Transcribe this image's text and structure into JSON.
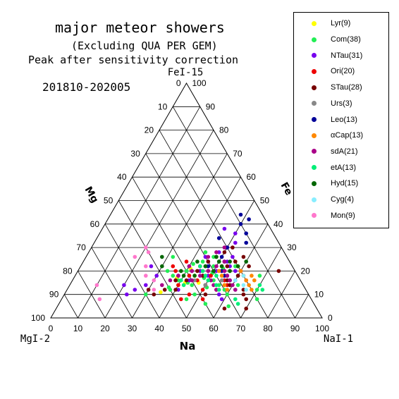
{
  "title_lines": [
    "major meteor showers",
    "(Excluding QUA PER GEM)",
    "Peak after sensitivity correction"
  ],
  "period": "201810-202005",
  "chart_data": {
    "type": "ternary-scatter",
    "axes": {
      "top_vertex": "FeI-15",
      "left_vertex": "MgI-2",
      "right_vertex": "NaI-1",
      "left_side_label": "Mg",
      "right_side_label": "Fe",
      "bottom_label": "Na"
    },
    "ticks": {
      "na_bottom": [
        "0",
        "10",
        "20",
        "30",
        "40",
        "50",
        "60",
        "70",
        "80",
        "90",
        "100"
      ],
      "mg_left": [
        "100",
        "90",
        "80",
        "70",
        "60",
        "50",
        "40",
        "30",
        "20",
        "10",
        "0"
      ],
      "fe_right": [
        "100",
        "90",
        "80",
        "70",
        "60",
        "50",
        "40",
        "30",
        "20",
        "10",
        "0"
      ]
    },
    "legend": [
      {
        "label": "Lyr(9)",
        "color": "#ffff00"
      },
      {
        "label": "Com(38)",
        "color": "#22ee55"
      },
      {
        "label": "NTau(31)",
        "color": "#7700ee"
      },
      {
        "label": "Ori(20)",
        "color": "#ee0000"
      },
      {
        "label": "STau(28)",
        "color": "#770000"
      },
      {
        "label": "Urs(3)",
        "color": "#888888"
      },
      {
        "label": "Leo(13)",
        "color": "#000099"
      },
      {
        "label": "αCap(13)",
        "color": "#ff8800"
      },
      {
        "label": "sdA(21)",
        "color": "#aa0088"
      },
      {
        "label": "etA(13)",
        "color": "#00ee77"
      },
      {
        "label": "Hyd(15)",
        "color": "#006600"
      },
      {
        "label": "Cyg(4)",
        "color": "#88eeff"
      },
      {
        "label": "Mon(9)",
        "color": "#ff77cc"
      }
    ],
    "points_note": "Points given as [Na%, Fe%] (Mg = 100 - Na - Fe)",
    "series": [
      {
        "name": "Lyr(9)",
        "color": "#ffff00",
        "points": [
          [
            44,
            18
          ],
          [
            46,
            16
          ],
          [
            47,
            15
          ],
          [
            40,
            14
          ],
          [
            38,
            17
          ],
          [
            41,
            21
          ],
          [
            45,
            20
          ],
          [
            42,
            15
          ],
          [
            35,
            11
          ]
        ]
      },
      {
        "name": "Com(38)",
        "color": "#22ee55",
        "points": [
          [
            42,
            18
          ],
          [
            45,
            20
          ],
          [
            48,
            17
          ],
          [
            50,
            19
          ],
          [
            43,
            15
          ],
          [
            38,
            12
          ],
          [
            40,
            20
          ],
          [
            46,
            22
          ],
          [
            52,
            16
          ],
          [
            55,
            14
          ],
          [
            58,
            12
          ],
          [
            60,
            10
          ],
          [
            36,
            18
          ],
          [
            44,
            24
          ],
          [
            47,
            26
          ],
          [
            49,
            22
          ],
          [
            51,
            13
          ],
          [
            53,
            21
          ],
          [
            41,
            23
          ],
          [
            39,
            16
          ],
          [
            37,
            13
          ],
          [
            56,
            18
          ],
          [
            57,
            22
          ],
          [
            45,
            14
          ],
          [
            43,
            28
          ],
          [
            48,
            10
          ],
          [
            50,
            24
          ],
          [
            60,
            18
          ],
          [
            62,
            14
          ],
          [
            32,
            26
          ],
          [
            30,
            10
          ],
          [
            33,
            20
          ],
          [
            46,
            8
          ],
          [
            54,
            6
          ],
          [
            63,
            5
          ],
          [
            70,
            12
          ],
          [
            68,
            18
          ],
          [
            72,
            8
          ]
        ]
      },
      {
        "name": "NTau(31)",
        "color": "#7700ee",
        "points": [
          [
            45,
            20
          ],
          [
            47,
            22
          ],
          [
            49,
            18
          ],
          [
            51,
            20
          ],
          [
            53,
            24
          ],
          [
            55,
            22
          ],
          [
            44,
            26
          ],
          [
            48,
            28
          ],
          [
            50,
            30
          ],
          [
            52,
            32
          ],
          [
            46,
            24
          ],
          [
            42,
            20
          ],
          [
            40,
            22
          ],
          [
            38,
            18
          ],
          [
            56,
            18
          ],
          [
            58,
            20
          ],
          [
            60,
            16
          ],
          [
            62,
            12
          ],
          [
            30,
            18
          ],
          [
            28,
            14
          ],
          [
            26,
            22
          ],
          [
            45,
            38
          ],
          [
            50,
            36
          ],
          [
            54,
            26
          ],
          [
            43,
            16
          ],
          [
            41,
            12
          ],
          [
            57,
            10
          ],
          [
            59,
            8
          ],
          [
            25,
            12
          ],
          [
            23,
            10
          ],
          [
            20,
            14
          ]
        ]
      },
      {
        "name": "Ori(20)",
        "color": "#ee0000",
        "points": [
          [
            48,
            20
          ],
          [
            50,
            18
          ],
          [
            52,
            22
          ],
          [
            46,
            16
          ],
          [
            44,
            22
          ],
          [
            54,
            20
          ],
          [
            56,
            16
          ],
          [
            58,
            14
          ],
          [
            42,
            18
          ],
          [
            40,
            14
          ],
          [
            60,
            20
          ],
          [
            62,
            18
          ],
          [
            38,
            24
          ],
          [
            36,
            20
          ],
          [
            50,
            12
          ],
          [
            52,
            8
          ],
          [
            46,
            10
          ],
          [
            44,
            8
          ],
          [
            64,
            16
          ],
          [
            34,
            22
          ]
        ]
      },
      {
        "name": "STau(28)",
        "color": "#770000",
        "points": [
          [
            48,
            26
          ],
          [
            50,
            28
          ],
          [
            52,
            30
          ],
          [
            46,
            24
          ],
          [
            44,
            20
          ],
          [
            54,
            22
          ],
          [
            56,
            24
          ],
          [
            58,
            26
          ],
          [
            42,
            16
          ],
          [
            40,
            12
          ],
          [
            60,
            18
          ],
          [
            62,
            22
          ],
          [
            38,
            16
          ],
          [
            36,
            12
          ],
          [
            50,
            14
          ],
          [
            52,
            10
          ],
          [
            47,
            18
          ],
          [
            55,
            12
          ],
          [
            57,
            16
          ],
          [
            59,
            14
          ],
          [
            65,
            12
          ],
          [
            66,
            10
          ],
          [
            68,
            8
          ],
          [
            70,
            4
          ],
          [
            62,
            4
          ],
          [
            33,
            10
          ],
          [
            30,
            12
          ],
          [
            74,
            20
          ]
        ]
      },
      {
        "name": "Urs(3)",
        "color": "#888888",
        "points": [
          [
            45,
            16
          ],
          [
            50,
            14
          ],
          [
            55,
            16
          ]
        ]
      },
      {
        "name": "Leo(13)",
        "color": "#000099",
        "points": [
          [
            50,
            40
          ],
          [
            52,
            42
          ],
          [
            48,
            44
          ],
          [
            54,
            36
          ],
          [
            45,
            34
          ],
          [
            56,
            32
          ],
          [
            50,
            30
          ],
          [
            47,
            22
          ],
          [
            53,
            20
          ],
          [
            55,
            18
          ],
          [
            58,
            16
          ],
          [
            52,
            24
          ],
          [
            50,
            26
          ]
        ]
      },
      {
        "name": "αCap(13)",
        "color": "#ff8800",
        "points": [
          [
            60,
            20
          ],
          [
            62,
            18
          ],
          [
            64,
            16
          ],
          [
            58,
            22
          ],
          [
            56,
            20
          ],
          [
            66,
            14
          ],
          [
            68,
            12
          ],
          [
            54,
            18
          ],
          [
            52,
            20
          ],
          [
            65,
            18
          ],
          [
            67,
            16
          ],
          [
            57,
            14
          ],
          [
            59,
            12
          ]
        ]
      },
      {
        "name": "sdA(21)",
        "color": "#aa0088",
        "points": [
          [
            48,
            20
          ],
          [
            50,
            22
          ],
          [
            52,
            24
          ],
          [
            46,
            18
          ],
          [
            44,
            16
          ],
          [
            54,
            20
          ],
          [
            56,
            18
          ],
          [
            42,
            20
          ],
          [
            40,
            22
          ],
          [
            58,
            16
          ],
          [
            38,
            18
          ],
          [
            60,
            14
          ],
          [
            45,
            26
          ],
          [
            47,
            28
          ],
          [
            49,
            30
          ],
          [
            36,
            16
          ],
          [
            34,
            14
          ],
          [
            62,
            12
          ],
          [
            51,
            16
          ],
          [
            53,
            14
          ],
          [
            55,
            12
          ]
        ]
      },
      {
        "name": "etA(13)",
        "color": "#00ee77",
        "points": [
          [
            46,
            20
          ],
          [
            48,
            18
          ],
          [
            50,
            16
          ],
          [
            44,
            22
          ],
          [
            52,
            18
          ],
          [
            42,
            14
          ],
          [
            40,
            16
          ],
          [
            54,
            14
          ],
          [
            56,
            12
          ],
          [
            70,
            14
          ],
          [
            72,
            12
          ],
          [
            66,
            6
          ],
          [
            64,
            8
          ]
        ]
      },
      {
        "name": "Hyd(15)",
        "color": "#006600",
        "points": [
          [
            50,
            24
          ],
          [
            52,
            22
          ],
          [
            48,
            26
          ],
          [
            46,
            22
          ],
          [
            54,
            24
          ],
          [
            44,
            18
          ],
          [
            42,
            24
          ],
          [
            56,
            20
          ],
          [
            40,
            18
          ],
          [
            58,
            22
          ],
          [
            38,
            20
          ],
          [
            28,
            26
          ],
          [
            30,
            22
          ],
          [
            60,
            24
          ],
          [
            50,
            20
          ]
        ]
      },
      {
        "name": "Cyg(4)",
        "color": "#88eeff",
        "points": [
          [
            62,
            18
          ],
          [
            64,
            14
          ],
          [
            66,
            12
          ],
          [
            60,
            16
          ]
        ]
      },
      {
        "name": "Mon(9)",
        "color": "#ff77cc",
        "points": [
          [
            20,
            30
          ],
          [
            22,
            28
          ],
          [
            18,
            26
          ],
          [
            24,
            22
          ],
          [
            26,
            18
          ],
          [
            10,
            14
          ],
          [
            14,
            8
          ],
          [
            30,
            16
          ],
          [
            32,
            12
          ]
        ]
      }
    ]
  }
}
